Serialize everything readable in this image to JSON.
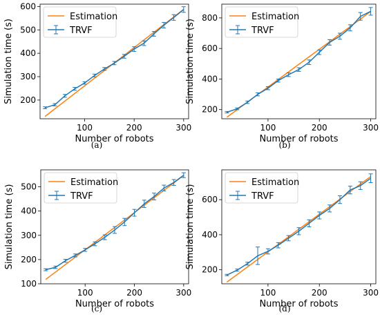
{
  "chart_data": [
    {
      "type": "line",
      "caption": "(a)",
      "xlabel": "Number of robots",
      "ylabel": "Simulation time (s)",
      "xlim": [
        10,
        310
      ],
      "ylim": [
        120,
        610
      ],
      "xticks": [
        100,
        200,
        300
      ],
      "yticks": [
        200,
        300,
        400,
        500,
        600
      ],
      "legend_position": "upper left",
      "series": [
        {
          "name": "Estimation",
          "color": "#ff7f0e",
          "kind": "line",
          "x": [
            20,
            300
          ],
          "y": [
            130,
            588
          ]
        },
        {
          "name": "TRVF",
          "color": "#1f77b4",
          "kind": "errorbar",
          "x": [
            20,
            40,
            60,
            80,
            100,
            120,
            140,
            160,
            180,
            200,
            220,
            240,
            260,
            280,
            300
          ],
          "y": [
            167,
            180,
            218,
            248,
            273,
            305,
            333,
            358,
            387,
            418,
            443,
            483,
            520,
            553,
            587
          ],
          "err": [
            4,
            5,
            6,
            6,
            5,
            6,
            6,
            7,
            8,
            10,
            10,
            10,
            12,
            12,
            12
          ]
        }
      ]
    },
    {
      "type": "line",
      "caption": "(b)",
      "xlabel": "Number of robots",
      "ylabel": "Simulation time (s)",
      "xlim": [
        10,
        310
      ],
      "ylim": [
        140,
        890
      ],
      "xticks": [
        100,
        200,
        300
      ],
      "yticks": [
        200,
        400,
        600,
        800
      ],
      "legend_position": "upper left",
      "series": [
        {
          "name": "Estimation",
          "color": "#ff7f0e",
          "kind": "line",
          "x": [
            20,
            300
          ],
          "y": [
            150,
            842
          ]
        },
        {
          "name": "TRVF",
          "color": "#1f77b4",
          "kind": "errorbar",
          "x": [
            20,
            40,
            60,
            80,
            100,
            120,
            140,
            160,
            180,
            200,
            220,
            240,
            260,
            280,
            300
          ],
          "y": [
            183,
            205,
            248,
            300,
            340,
            390,
            428,
            462,
            510,
            575,
            640,
            680,
            735,
            810,
            843
          ],
          "err": [
            5,
            6,
            8,
            10,
            10,
            10,
            12,
            12,
            15,
            15,
            18,
            20,
            20,
            25,
            25
          ]
        }
      ]
    },
    {
      "type": "line",
      "caption": "(c)",
      "xlabel": "Number of robots",
      "ylabel": "Simulation time (s)",
      "xlim": [
        10,
        310
      ],
      "ylim": [
        100,
        570
      ],
      "xticks": [
        100,
        200,
        300
      ],
      "yticks": [
        100,
        200,
        300,
        400,
        500
      ],
      "legend_position": "upper left",
      "series": [
        {
          "name": "Estimation",
          "color": "#ff7f0e",
          "kind": "line",
          "x": [
            20,
            300
          ],
          "y": [
            118,
            547
          ]
        },
        {
          "name": "TRVF",
          "color": "#1f77b4",
          "kind": "errorbar",
          "x": [
            20,
            40,
            60,
            80,
            100,
            120,
            140,
            160,
            180,
            200,
            220,
            240,
            260,
            280,
            300
          ],
          "y": [
            158,
            168,
            195,
            217,
            240,
            265,
            292,
            322,
            355,
            393,
            430,
            460,
            495,
            518,
            548
          ],
          "err": [
            4,
            5,
            6,
            6,
            6,
            8,
            10,
            14,
            15,
            14,
            15,
            14,
            12,
            12,
            10
          ]
        }
      ]
    },
    {
      "type": "line",
      "caption": "(d)",
      "xlabel": "Number of robots",
      "ylabel": "Simulation time (s)",
      "xlim": [
        10,
        310
      ],
      "ylim": [
        120,
        770
      ],
      "xticks": [
        100,
        200,
        300
      ],
      "yticks": [
        200,
        400,
        600
      ],
      "legend_position": "upper left",
      "series": [
        {
          "name": "Estimation",
          "color": "#ff7f0e",
          "kind": "line",
          "x": [
            20,
            300
          ],
          "y": [
            130,
            732
          ]
        },
        {
          "name": "TRVF",
          "color": "#1f77b4",
          "kind": "errorbar",
          "x": [
            20,
            40,
            60,
            80,
            100,
            120,
            140,
            160,
            180,
            200,
            220,
            240,
            260,
            280,
            300
          ],
          "y": [
            170,
            198,
            235,
            280,
            305,
            340,
            380,
            420,
            465,
            510,
            550,
            600,
            655,
            680,
            722
          ],
          "err": [
            4,
            6,
            8,
            50,
            15,
            15,
            15,
            20,
            20,
            20,
            20,
            22,
            22,
            22,
            25
          ]
        }
      ]
    }
  ]
}
